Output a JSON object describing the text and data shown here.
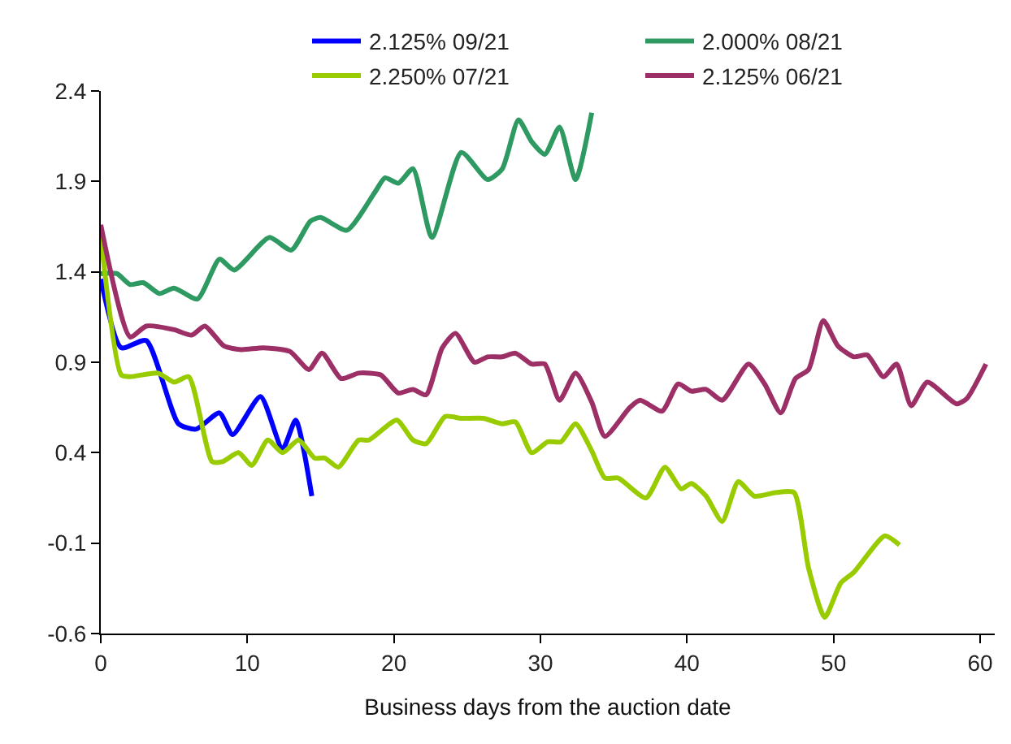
{
  "chart_data": {
    "type": "line",
    "xlabel": "Business days from the auction date",
    "xlim": [
      0,
      61
    ],
    "xticks": [
      0,
      10,
      20,
      30,
      40,
      50,
      60
    ],
    "ylim": [
      -0.6,
      2.4
    ],
    "yticks": [
      -0.6,
      -0.1,
      0.4,
      0.9,
      1.4,
      1.9,
      2.4
    ],
    "legend": "top",
    "marker": "none",
    "line_style": "solid",
    "series": [
      {
        "name": "2.125% 09/21",
        "color": "#0000ff",
        "x": [
          0,
          1.4,
          3.1,
          5.3,
          6.5,
          8.1,
          9.0,
          10.9,
          12.4,
          13.3,
          14.4
        ],
        "values": [
          1.36,
          0.98,
          1.02,
          0.56,
          0.53,
          0.62,
          0.5,
          0.71,
          0.42,
          0.58,
          0.16
        ]
      },
      {
        "name": "2.000% 08/21",
        "color": "#2e9a62",
        "x": [
          0,
          1.1,
          2.0,
          2.9,
          4.0,
          5.0,
          6.6,
          8.1,
          9.1,
          11.5,
          13.0,
          14.3,
          15.0,
          16.8,
          18.7,
          19.4,
          20.3,
          21.3,
          22.6,
          24.6,
          26.4,
          27.4,
          28.5,
          29.4,
          30.3,
          31.3,
          32.4,
          33.5
        ],
        "values": [
          1.39,
          1.39,
          1.33,
          1.34,
          1.28,
          1.31,
          1.25,
          1.47,
          1.41,
          1.59,
          1.52,
          1.68,
          1.7,
          1.63,
          1.84,
          1.92,
          1.89,
          1.97,
          1.59,
          2.06,
          1.91,
          1.97,
          2.24,
          2.12,
          2.05,
          2.2,
          1.91,
          2.28
        ]
      },
      {
        "name": "2.250% 07/21",
        "color": "#99cc00",
        "x": [
          0,
          1.4,
          2.0,
          3.9,
          5.0,
          6.0,
          7.6,
          8.3,
          9.4,
          10.3,
          11.4,
          12.4,
          13.5,
          14.6,
          15.3,
          16.2,
          17.6,
          18.3,
          20.2,
          21.3,
          22.2,
          23.5,
          24.6,
          26.1,
          27.4,
          28.3,
          29.4,
          30.5,
          31.4,
          32.4,
          33.5,
          34.4,
          35.3,
          37.2,
          38.5,
          39.6,
          40.3,
          41.3,
          42.4,
          43.5,
          44.6,
          46.1,
          47.3,
          48.3,
          49.4,
          50.5,
          51.4,
          53.5,
          54.5
        ],
        "values": [
          1.6,
          0.83,
          0.82,
          0.84,
          0.79,
          0.82,
          0.35,
          0.35,
          0.4,
          0.33,
          0.47,
          0.4,
          0.47,
          0.37,
          0.37,
          0.32,
          0.47,
          0.47,
          0.58,
          0.47,
          0.45,
          0.6,
          0.59,
          0.59,
          0.56,
          0.57,
          0.4,
          0.46,
          0.46,
          0.56,
          0.41,
          0.26,
          0.26,
          0.15,
          0.32,
          0.2,
          0.23,
          0.16,
          0.02,
          0.24,
          0.16,
          0.18,
          0.18,
          -0.24,
          -0.51,
          -0.32,
          -0.26,
          -0.06,
          -0.11
        ]
      },
      {
        "name": "2.125% 06/21",
        "color": "#9b2f66",
        "x": [
          0,
          2.0,
          3.1,
          5.0,
          6.2,
          7.1,
          8.4,
          9.6,
          11.1,
          12.9,
          14.2,
          15.1,
          16.4,
          17.6,
          19.1,
          20.3,
          21.3,
          22.2,
          23.3,
          24.2,
          25.5,
          26.4,
          27.4,
          28.3,
          29.4,
          30.3,
          31.3,
          32.4,
          33.5,
          34.4,
          36.1,
          36.8,
          38.3,
          39.4,
          40.3,
          41.3,
          42.4,
          44.2,
          45.3,
          46.4,
          47.4,
          48.3,
          49.3,
          50.3,
          51.4,
          52.3,
          53.4,
          54.3,
          55.3,
          56.4,
          58.4,
          59.1,
          60.4
        ],
        "values": [
          1.66,
          1.04,
          1.1,
          1.08,
          1.05,
          1.1,
          0.99,
          0.97,
          0.98,
          0.96,
          0.86,
          0.95,
          0.81,
          0.84,
          0.83,
          0.73,
          0.75,
          0.72,
          0.98,
          1.06,
          0.9,
          0.93,
          0.93,
          0.95,
          0.89,
          0.89,
          0.69,
          0.84,
          0.68,
          0.49,
          0.65,
          0.69,
          0.63,
          0.78,
          0.74,
          0.75,
          0.69,
          0.89,
          0.78,
          0.62,
          0.81,
          0.86,
          1.13,
          0.99,
          0.93,
          0.94,
          0.82,
          0.89,
          0.66,
          0.79,
          0.67,
          0.7,
          0.89
        ]
      }
    ]
  }
}
